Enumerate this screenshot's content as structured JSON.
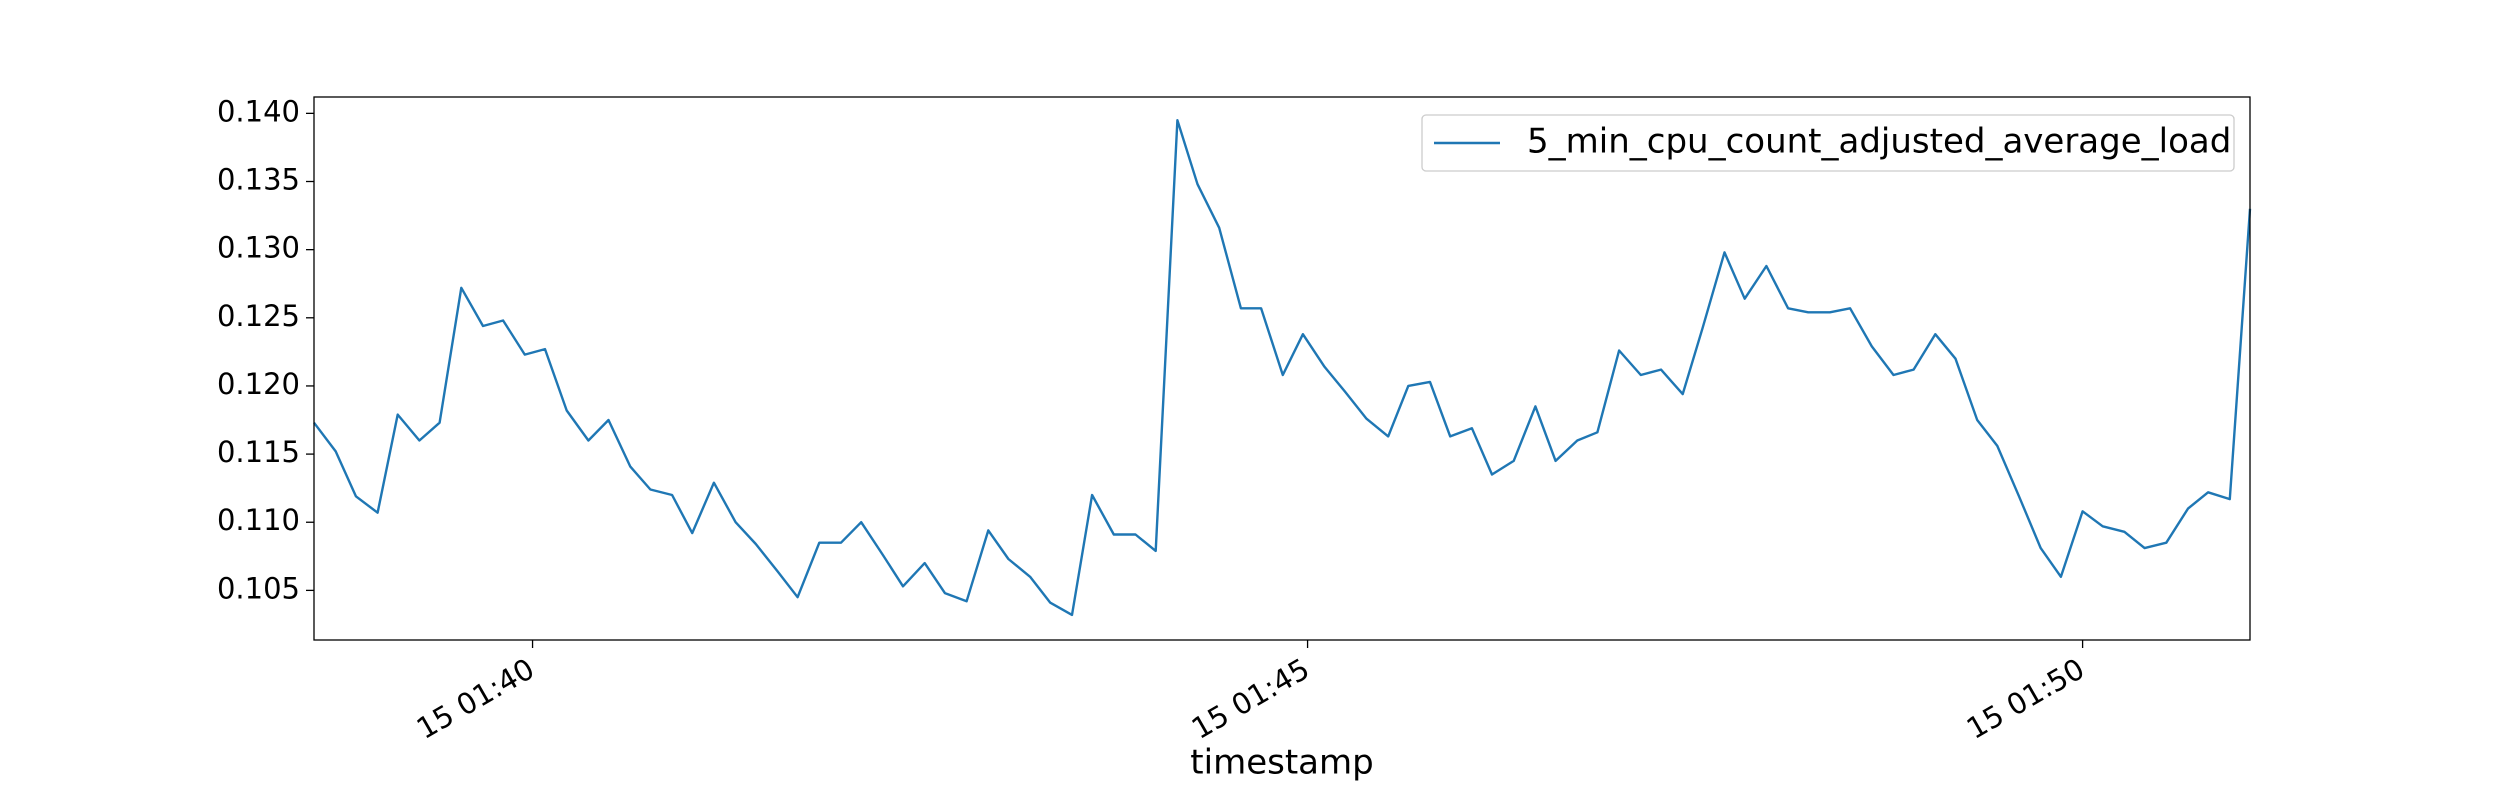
{
  "chart_data": {
    "type": "line",
    "xlabel": "timestamp",
    "x": [
      98.59,
      98.73,
      98.86,
      99.0,
      99.13,
      99.27,
      99.4,
      99.54,
      99.68,
      99.81,
      99.95,
      100.08,
      100.22,
      100.36,
      100.49,
      100.63,
      100.76,
      100.9,
      101.03,
      101.17,
      101.31,
      101.44,
      101.58,
      101.71,
      101.85,
      101.99,
      102.12,
      102.26,
      102.39,
      102.53,
      102.66,
      102.8,
      102.94,
      103.07,
      103.21,
      103.34,
      103.48,
      103.61,
      103.75,
      103.89,
      104.02,
      104.16,
      104.29,
      104.43,
      104.57,
      104.7,
      104.84,
      104.97,
      105.11,
      105.24,
      105.38,
      105.52,
      105.65,
      105.79,
      105.92,
      106.06,
      106.19,
      106.33,
      106.47,
      106.6,
      106.74,
      106.87,
      107.01,
      107.15,
      107.28,
      107.42,
      107.55,
      107.69,
      107.82,
      107.96,
      108.1,
      108.23,
      108.37,
      108.5,
      108.64,
      108.78,
      108.91,
      109.05,
      109.18,
      109.32,
      109.45,
      109.59,
      109.73,
      109.86,
      110.0,
      110.13,
      110.27,
      110.4,
      110.54,
      110.68,
      110.81,
      110.95,
      111.08
    ],
    "series": [
      {
        "name": "5_min_cpu_count_adjusted_average_load",
        "color": "#1f77b4",
        "values": [
          0.1173,
          0.1152,
          0.1119,
          0.1107,
          0.1179,
          0.116,
          0.1173,
          0.1272,
          0.1244,
          0.1248,
          0.1223,
          0.1227,
          0.1182,
          0.116,
          0.1175,
          0.1141,
          0.1124,
          0.112,
          0.1092,
          0.1129,
          0.11,
          0.1084,
          0.1064,
          0.1045,
          0.1085,
          0.1085,
          0.11,
          0.1076,
          0.1053,
          0.107,
          0.1048,
          0.1042,
          0.1094,
          0.1073,
          0.106,
          0.1041,
          0.1032,
          0.112,
          0.1091,
          0.1091,
          0.1079,
          0.1395,
          0.1348,
          0.1316,
          0.1257,
          0.1257,
          0.1208,
          0.1238,
          0.1214,
          0.1196,
          0.1176,
          0.1163,
          0.12,
          0.1203,
          0.1163,
          0.1169,
          0.1135,
          0.1145,
          0.1185,
          0.1145,
          0.116,
          0.1166,
          0.1226,
          0.1208,
          0.1212,
          0.1194,
          0.1243,
          0.1298,
          0.1264,
          0.1288,
          0.1257,
          0.1254,
          0.1254,
          0.1257,
          0.1229,
          0.1208,
          0.1212,
          0.1238,
          0.122,
          0.1175,
          0.1156,
          0.1119,
          0.1081,
          0.106,
          0.1108,
          0.1097,
          0.1093,
          0.1081,
          0.1085,
          0.111,
          0.1122,
          0.1117,
          0.133
        ]
      }
    ],
    "xlim": [
      98.59,
      111.08
    ],
    "xticks": [
      {
        "value": 100,
        "label": "15 01:40"
      },
      {
        "value": 105,
        "label": "15 01:45"
      },
      {
        "value": 110,
        "label": "15 01:50"
      }
    ],
    "ylim": [
      0.10136,
      0.1412
    ],
    "yticks": [
      0.105,
      {
        "value": 0.11,
        "label": "0.110"
      },
      0.115,
      {
        "value": 0.12,
        "label": "0.120"
      },
      0.125,
      {
        "value": 0.13,
        "label": "0.130"
      },
      0.135,
      {
        "value": 0.14,
        "label": "0.140"
      }
    ],
    "legend": "upper right"
  }
}
